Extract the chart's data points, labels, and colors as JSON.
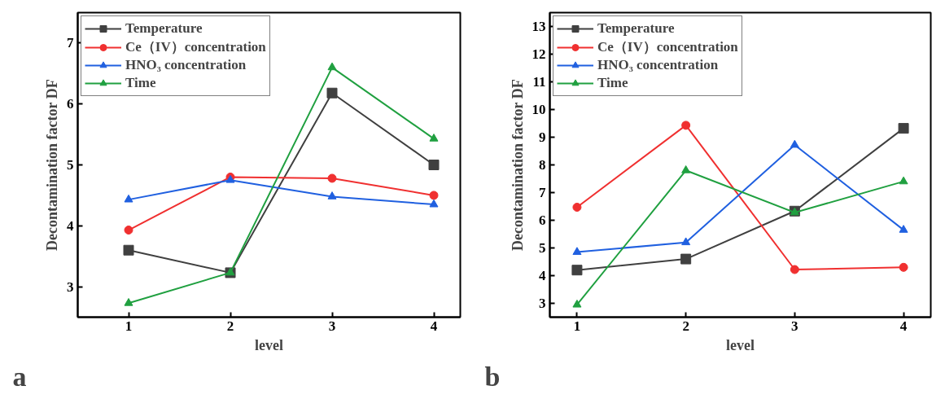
{
  "chart_data": [
    {
      "type": "line",
      "xlabel": "level",
      "ylabel": "Decontamination factor DF",
      "x": [
        1,
        2,
        3,
        4
      ],
      "xlim": [
        0.5,
        4.26
      ],
      "xticks": [
        1,
        2,
        3,
        4
      ],
      "ylim": [
        2.5,
        7.5
      ],
      "yticks": [
        3,
        4,
        5,
        6,
        7
      ],
      "legend": "top left",
      "grid": false,
      "annotations": [
        "a"
      ],
      "series": [
        {
          "name": "Temperature",
          "color": "#404040",
          "marker": "square",
          "values": [
            3.6,
            3.23,
            6.18,
            5.0
          ]
        },
        {
          "name": "Ce（IV）concentration",
          "color": "#f03030",
          "marker": "circle",
          "values": [
            3.93,
            4.8,
            4.78,
            4.5
          ]
        },
        {
          "name": "HNO₃ concentration",
          "color": "#2060e0",
          "marker": "triangle",
          "values": [
            4.43,
            4.75,
            4.48,
            4.35
          ]
        },
        {
          "name": "Time",
          "color": "#20a040",
          "marker": "triangle",
          "values": [
            2.73,
            3.23,
            6.6,
            5.43
          ]
        }
      ]
    },
    {
      "type": "line",
      "xlabel": "level",
      "ylabel": "Decontamination factor DF",
      "x": [
        1,
        2,
        3,
        4
      ],
      "xlim": [
        0.75,
        4.25
      ],
      "xticks": [
        1,
        2,
        3,
        4
      ],
      "ylim": [
        2.5,
        13.5
      ],
      "yticks": [
        3,
        4,
        5,
        6,
        7,
        8,
        9,
        10,
        11,
        12,
        13
      ],
      "legend": "top left",
      "grid": false,
      "annotations": [
        "b"
      ],
      "series": [
        {
          "name": "Temperature",
          "color": "#404040",
          "marker": "square",
          "values": [
            4.2,
            4.6,
            6.33,
            9.32
          ]
        },
        {
          "name": "Ce（IV）concentration",
          "color": "#f03030",
          "marker": "circle",
          "values": [
            6.47,
            9.43,
            4.22,
            4.3
          ]
        },
        {
          "name": "HNO₃ concentration",
          "color": "#2060e0",
          "marker": "triangle",
          "values": [
            4.85,
            5.2,
            8.72,
            5.65
          ]
        },
        {
          "name": "Time",
          "color": "#20a040",
          "marker": "triangle",
          "values": [
            2.95,
            7.8,
            6.28,
            7.4
          ]
        }
      ]
    }
  ]
}
